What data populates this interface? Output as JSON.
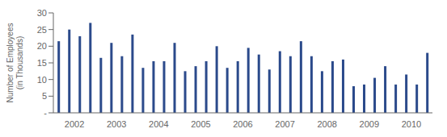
{
  "chart_data": {
    "type": "bar",
    "categories": [
      null,
      "2002",
      null,
      null,
      null,
      "2003",
      null,
      null,
      null,
      "2004",
      null,
      null,
      null,
      "2005",
      null,
      null,
      null,
      "2006",
      null,
      null,
      null,
      "2007",
      null,
      null,
      null,
      "2008",
      null,
      null,
      null,
      "2009",
      null,
      null,
      null,
      "2010",
      null,
      null
    ],
    "values": [
      21.5,
      25,
      23,
      27,
      16.5,
      21,
      17,
      23.5,
      13.5,
      15.5,
      15.5,
      21,
      12.5,
      14,
      15.5,
      20,
      13.5,
      15.5,
      19.5,
      17.5,
      13,
      18.5,
      17,
      21.5,
      17,
      12.5,
      15.5,
      16,
      8,
      8.5,
      10.5,
      14,
      8.5,
      11.5,
      8.5,
      18
    ],
    "color": "#2B4A8B",
    "ylabel": "Number of Employees\n(in Thousands)",
    "ylim": [
      0,
      30
    ],
    "yticks": [
      {
        "value": 0,
        "label": "-"
      },
      5,
      10,
      15,
      20,
      25,
      30
    ],
    "grid": false
  }
}
